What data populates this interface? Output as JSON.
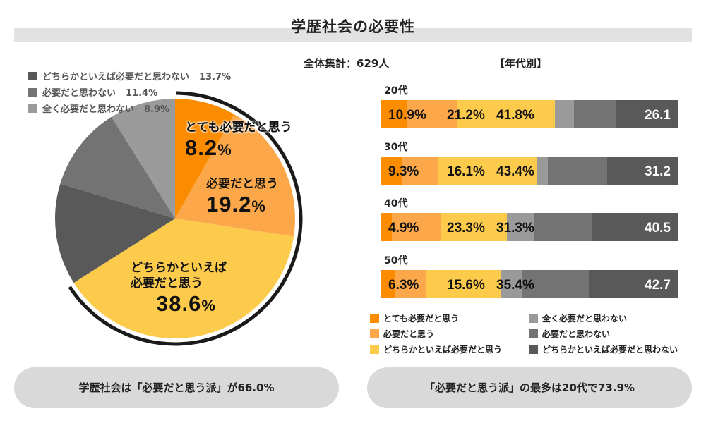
{
  "title": "学歴社会の必要性",
  "total_label": "全体集計：629人",
  "by_age_title": "【年代別】",
  "colors": {
    "very_necessary": "#fb8c00",
    "necessary": "#fca84a",
    "somewhat_necessary": "#fdcb4c",
    "not_at_all": "#9a9a9a",
    "not_necessary": "#737373",
    "somewhat_not": "#595959"
  },
  "pie_small_legend": [
    {
      "label": "どちらかといえば必要だと思わない",
      "pct": "13.7%",
      "color": "#595959"
    },
    {
      "label": "必要だと思わない",
      "pct": "11.4%",
      "color": "#737373"
    },
    {
      "label": "全く必要だと思わない",
      "pct": "8.9%",
      "color": "#9a9a9a"
    }
  ],
  "pie_labels": [
    {
      "text": "とても必要だと思う",
      "num": "8.2",
      "unit": "%"
    },
    {
      "text": "必要だと思う",
      "num": "19.2",
      "unit": "%"
    },
    {
      "text1": "どちらかといえば",
      "text2": "必要だと思う",
      "num": "38.6",
      "unit": "%"
    }
  ],
  "ages": [
    "20代",
    "30代",
    "40代",
    "50代"
  ],
  "legend": [
    {
      "label": "とても必要だと思う",
      "color": "#fb8c00"
    },
    {
      "label": "全く必要だと思わない",
      "color": "#9a9a9a"
    },
    {
      "label": "必要だと思う",
      "color": "#fca84a"
    },
    {
      "label": "必要だと思わない",
      "color": "#737373"
    },
    {
      "label": "どちらかといえば必要だと思う",
      "color": "#fdcb4c"
    },
    {
      "label": "どちらかといえば必要だと思わない",
      "color": "#595959"
    }
  ],
  "summary_left": "学歴社会は「必要だと思う派」が66.0%",
  "summary_right": "「必要だと思う派」の最多は20代で73.9%",
  "chart_data": [
    {
      "type": "pie",
      "title": "学歴社会の必要性",
      "total": "全体集計：629人",
      "categories": [
        "とても必要だと思う",
        "必要だと思う",
        "どちらかといえば必要だと思う",
        "どちらかといえば必要だと思わない",
        "必要だと思わない",
        "全く必要だと思わない"
      ],
      "values": [
        8.2,
        19.2,
        38.6,
        13.7,
        11.4,
        8.9
      ],
      "colors": [
        "#fb8c00",
        "#fca84a",
        "#fdcb4c",
        "#595959",
        "#737373",
        "#9a9a9a"
      ]
    },
    {
      "type": "bar",
      "orientation": "horizontal",
      "stacked": true,
      "title": "【年代別】",
      "categories": [
        "20代",
        "30代",
        "40代",
        "50代"
      ],
      "series": [
        {
          "name": "とても必要だと思う",
          "values": [
            10.9,
            9.3,
            4.9,
            6.3
          ],
          "labels": [
            "10.9%",
            "9.3%",
            "4.9%",
            "6.3%"
          ],
          "color": "#fb8c00"
        },
        {
          "name": "必要だと思う",
          "values": [
            21.2,
            16.1,
            23.3,
            15.6
          ],
          "labels": [
            "21.2%",
            "16.1%",
            "23.3%",
            "15.6%"
          ],
          "color": "#fca84a"
        },
        {
          "name": "どちらかといえば必要だと思う",
          "values": [
            41.8,
            43.4,
            31.3,
            35.4
          ],
          "labels": [
            "41.8%",
            "43.4%",
            "31.3%",
            "35.4%"
          ],
          "color": "#fdcb4c"
        },
        {
          "name": "全く必要だと思わない",
          "values": [
            8.0,
            5.0,
            13.0,
            10.5
          ],
          "color": "#9a9a9a"
        },
        {
          "name": "必要だと思わない",
          "values": [
            18.0,
            26.2,
            27.5,
            32.2
          ],
          "color": "#737373"
        },
        {
          "name": "どちらかといえば必要だと思わない",
          "values": [
            26.1,
            31.2,
            40.5,
            42.7
          ],
          "color": "#595959"
        }
      ],
      "end_labels": [
        "26.1",
        "31.2",
        "40.5",
        "42.7"
      ]
    }
  ]
}
